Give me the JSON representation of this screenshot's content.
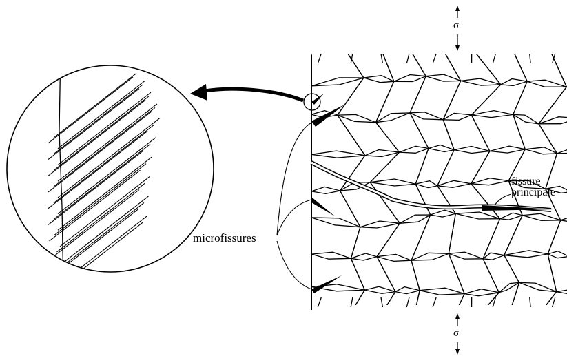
{
  "labels": {
    "sigma_top": "σ",
    "sigma_bottom": "σ",
    "microfissures": "microfissures",
    "main_crack_line1": "fissure",
    "main_crack_line2": "principale"
  },
  "colors": {
    "ink": "#000000",
    "paper": "#ffffff"
  }
}
